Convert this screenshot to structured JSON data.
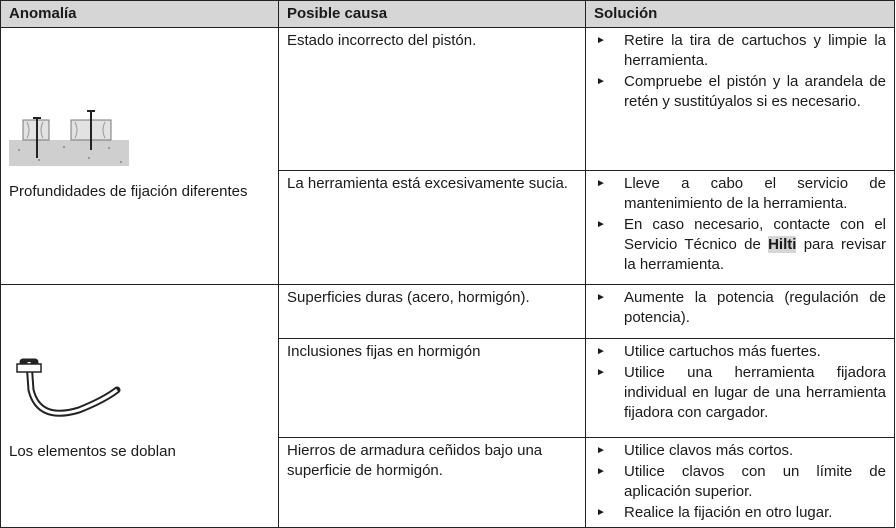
{
  "table": {
    "header": [
      "Anomalía",
      "Posible causa",
      "Solución"
    ],
    "rows": [
      {
        "anomaly": "Profundidades de fijación diferentes",
        "causes": [
          {
            "cause": "Estado incorrecto del pistón.",
            "solutions": [
              "Retire la tira de cartuchos y limpie la herramienta.",
              "Compruebe el pistón y la arandela de retén y sustitúyalos si es necesario."
            ]
          },
          {
            "cause": "La herramienta está excesivamente sucia.",
            "solutions": [
              "Lleve a cabo el servicio de mantenimiento de la herramienta.",
              {
                "parts": [
                  "En caso necesario, contacte con el Servicio Técnico de ",
                  "Hilti",
                  " para revisar la herramienta."
                ]
              }
            ]
          }
        ]
      },
      {
        "anomaly": "Los elementos se doblan",
        "causes": [
          {
            "cause": "Superficies duras (acero, hormigón).",
            "solutions": [
              "Aumente la potencia (regulación de potencia)."
            ]
          },
          {
            "cause": "Inclusiones fijas en hormigón",
            "solutions": [
              "Utilice cartuchos más fuertes.",
              "Utilice una herramienta fijadora individual en lugar de una herramienta fijadora con cargador."
            ]
          },
          {
            "cause": "Hierros de armadura ceñidos bajo una superficie de hormigón.",
            "solutions": [
              "Utilice clavos más cortos.",
              "Utilice clavos con un límite de aplicación superior.",
              "Realice la fijación en otro lugar."
            ]
          }
        ]
      }
    ]
  }
}
